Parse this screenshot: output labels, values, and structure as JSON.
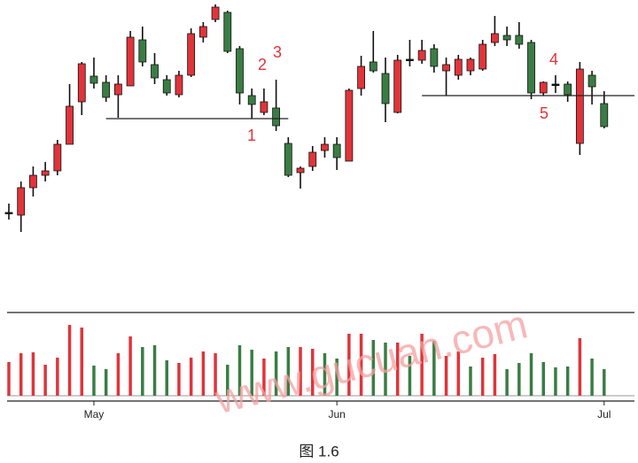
{
  "chart_data": {
    "type": "candlestick",
    "caption": "图 1.6",
    "watermark": "www.gucuan.com",
    "categories": [
      null,
      null,
      null,
      null,
      null,
      null,
      null,
      "May",
      null,
      null,
      null,
      null,
      null,
      null,
      null,
      null,
      null,
      null,
      null,
      null,
      null,
      null,
      null,
      null,
      null,
      null,
      null,
      "Jun",
      null,
      null,
      null,
      null,
      null,
      null,
      null,
      null,
      null,
      null,
      null,
      null,
      null,
      null,
      null,
      null,
      null,
      null,
      null,
      null,
      null,
      "Jul"
    ],
    "open": [
      30,
      27,
      58,
      72,
      77,
      107,
      155,
      184,
      177,
      163,
      173,
      225,
      197,
      180,
      163,
      185,
      228,
      248,
      256,
      215,
      162,
      143,
      148,
      108,
      75,
      82,
      100,
      107,
      88,
      170,
      200,
      187,
      143,
      203,
      202,
      215,
      190,
      185,
      190,
      192,
      222,
      230,
      230,
      222,
      165,
      175,
      175,
      108,
      185,
      153
    ],
    "high": [
      40,
      65,
      82,
      87,
      112,
      175,
      200,
      205,
      185,
      185,
      235,
      240,
      210,
      185,
      190,
      238,
      245,
      265,
      258,
      218,
      170,
      170,
      180,
      115,
      82,
      105,
      115,
      115,
      170,
      207,
      235,
      205,
      208,
      225,
      225,
      220,
      205,
      208,
      205,
      225,
      252,
      240,
      245,
      225,
      178,
      185,
      178,
      200,
      190,
      167
    ],
    "low": [
      22,
      8,
      48,
      65,
      72,
      107,
      140,
      170,
      155,
      137,
      173,
      195,
      175,
      162,
      160,
      183,
      222,
      245,
      210,
      152,
      136,
      140,
      122,
      70,
      57,
      77,
      92,
      78,
      88,
      162,
      188,
      132,
      142,
      195,
      198,
      188,
      162,
      180,
      185,
      190,
      218,
      218,
      215,
      158,
      162,
      165,
      155,
      95,
      152,
      125
    ],
    "close": [
      30,
      58,
      72,
      77,
      107,
      150,
      198,
      176,
      160,
      175,
      228,
      200,
      182,
      165,
      185,
      232,
      240,
      262,
      212,
      165,
      152,
      155,
      128,
      72,
      80,
      98,
      107,
      92,
      168,
      195,
      190,
      153,
      202,
      203,
      213,
      195,
      197,
      203,
      203,
      220,
      232,
      225,
      220,
      165,
      177,
      175,
      163,
      192,
      172,
      127
    ],
    "up_color": "#e0343a",
    "down_color": "#3a7d44",
    "doji_color": "#111111",
    "ylim": [
      0,
      270
    ],
    "levels": [
      {
        "value": 136,
        "from": 8,
        "to": 23
      },
      {
        "value": 162,
        "from": 34,
        "to": 52
      }
    ],
    "annotations": [
      "1",
      "2",
      "3",
      "4",
      "5"
    ],
    "volume": [
      38,
      48,
      49,
      35,
      43,
      80,
      77,
      34,
      30,
      48,
      67,
      55,
      57,
      40,
      37,
      43,
      50,
      48,
      35,
      57,
      52,
      42,
      50,
      55,
      55,
      53,
      48,
      42,
      70,
      70,
      63,
      60,
      60,
      45,
      70,
      62,
      45,
      50,
      33,
      43,
      47,
      30,
      37,
      48,
      38,
      32,
      33,
      65,
      42,
      30
    ],
    "volume_colors": [
      "#e0343a",
      "#e0343a",
      "#e0343a",
      "#e0343a",
      "#e0343a",
      "#e0343a",
      "#e0343a",
      "#3a7d44",
      "#3a7d44",
      "#e0343a",
      "#e0343a",
      "#3a7d44",
      "#3a7d44",
      "#3a7d44",
      "#e0343a",
      "#e0343a",
      "#e0343a",
      "#e0343a",
      "#3a7d44",
      "#3a7d44",
      "#3a7d44",
      "#e0343a",
      "#3a7d44",
      "#3a7d44",
      "#e0343a",
      "#e0343a",
      "#3a7d44",
      "#3a7d44",
      "#e0343a",
      "#e0343a",
      "#3a7d44",
      "#3a7d44",
      "#e0343a",
      "#3a7d44",
      "#e0343a",
      "#3a7d44",
      "#e0343a",
      "#e0343a",
      "#3a7d44",
      "#e0343a",
      "#e0343a",
      "#3a7d44",
      "#3a7d44",
      "#3a7d44",
      "#3a7d44",
      "#3a7d44",
      "#3a7d44",
      "#e0343a",
      "#3a7d44",
      "#3a7d44"
    ],
    "volume_ylim": [
      0,
      94
    ]
  }
}
